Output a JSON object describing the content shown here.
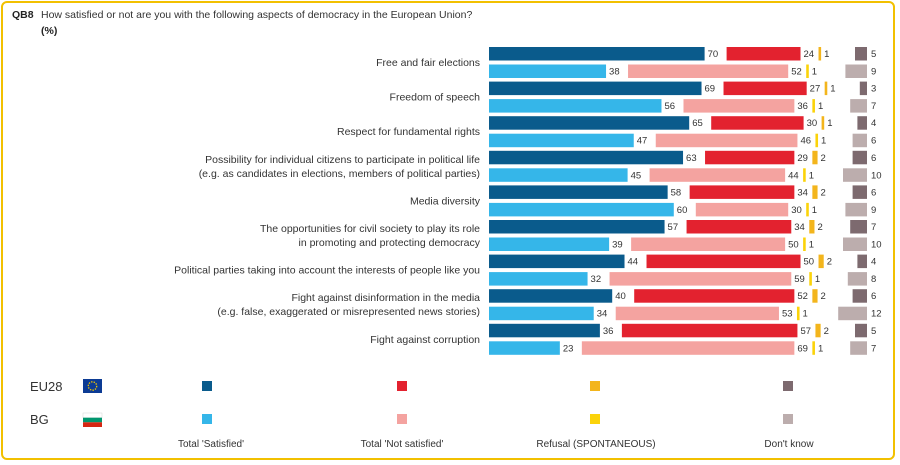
{
  "header": {
    "question_id": "QB8",
    "question": "How satisfied or not are you with the following aspects of democracy in the European Union?",
    "unit": "(%)"
  },
  "colors": {
    "EU28": [
      "#0a5b8c",
      "#e3222f",
      "#f3b51c",
      "#7d6a6f"
    ],
    "BG": [
      "#35b6e9",
      "#f4a3a0",
      "#fbd30a",
      "#bcadad"
    ]
  },
  "chart_data": {
    "type": "bar",
    "orientation": "horizontal",
    "stacked": "divided",
    "categories": [
      [
        "Free and fair elections"
      ],
      [
        "Freedom of speech"
      ],
      [
        "Respect for fundamental rights"
      ],
      [
        "Possibility for individual citizens to participate in political life",
        "(e.g. as candidates in elections, members of political parties)"
      ],
      [
        "Media diversity"
      ],
      [
        "The opportunities for civil society to play its role",
        "in promoting and protecting democracy"
      ],
      [
        "Political parties taking into account the interests of people like you"
      ],
      [
        "Fight against disinformation in the media",
        "(e.g. false, exaggerated or misrepresented news stories)"
      ],
      [
        "Fight against corruption"
      ]
    ],
    "series_names": [
      "Total 'Satisfied'",
      "Total 'Not satisfied'",
      "Refusal (SPONTANEOUS)",
      "Don't know"
    ],
    "groups": [
      {
        "name": "EU28",
        "values": [
          [
            70,
            24,
            1,
            5
          ],
          [
            69,
            27,
            1,
            3
          ],
          [
            65,
            30,
            1,
            4
          ],
          [
            63,
            29,
            2,
            6
          ],
          [
            58,
            34,
            2,
            6
          ],
          [
            57,
            34,
            2,
            7
          ],
          [
            44,
            50,
            2,
            4
          ],
          [
            40,
            52,
            2,
            6
          ],
          [
            36,
            57,
            2,
            5
          ]
        ]
      },
      {
        "name": "BG",
        "values": [
          [
            38,
            52,
            1,
            9
          ],
          [
            56,
            36,
            1,
            7
          ],
          [
            47,
            46,
            1,
            6
          ],
          [
            45,
            44,
            1,
            10
          ],
          [
            60,
            30,
            1,
            9
          ],
          [
            39,
            50,
            1,
            10
          ],
          [
            32,
            59,
            1,
            8
          ],
          [
            34,
            53,
            1,
            12
          ],
          [
            23,
            69,
            1,
            7
          ]
        ]
      }
    ]
  }
}
